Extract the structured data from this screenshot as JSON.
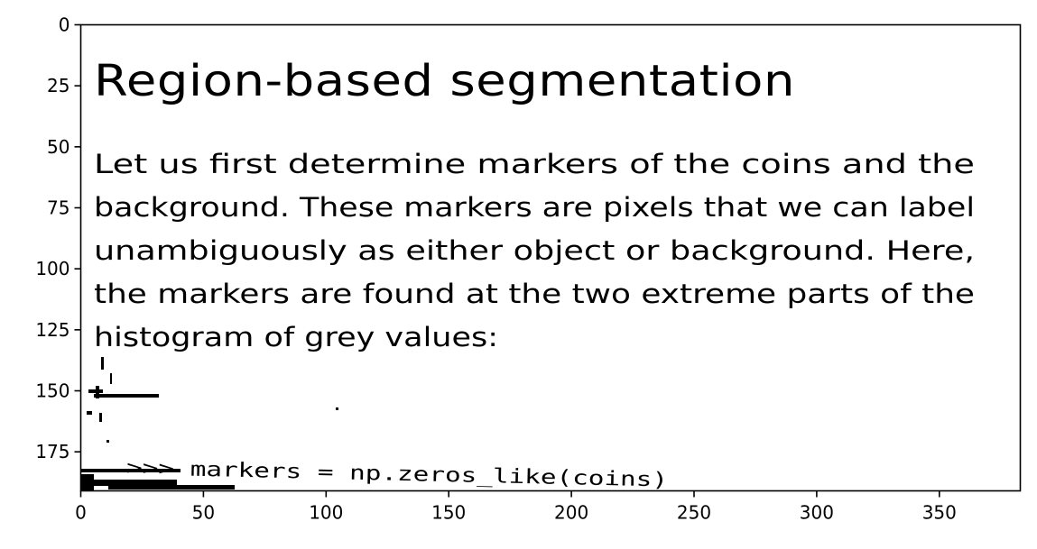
{
  "chart_data": {
    "type": "image",
    "xlim": [
      0,
      383
    ],
    "ylim": [
      191,
      0
    ],
    "x_ticks": [
      0,
      50,
      100,
      150,
      200,
      250,
      300,
      350
    ],
    "y_ticks": [
      0,
      25,
      50,
      75,
      100,
      125,
      150,
      175
    ],
    "x_tick_labels": [
      "0",
      "50",
      "100",
      "150",
      "200",
      "250",
      "300",
      "350"
    ],
    "y_tick_labels": [
      "0",
      "25",
      "50",
      "75",
      "100",
      "125",
      "150",
      "175"
    ],
    "grid": false,
    "colors": {
      "foreground": "#000000",
      "background": "#ffffff"
    }
  },
  "image_content": {
    "title": "Region-based segmentation",
    "paragraph_lines": [
      "Let us first determine markers of the coins and the",
      "background. These markers are pixels that we can label",
      "unambiguously as either object or background. Here,",
      "the markers are found at the two extreme parts of the",
      "histogram of grey values:"
    ],
    "code_line": ">>> markers = np.zeros_like(coins)"
  }
}
